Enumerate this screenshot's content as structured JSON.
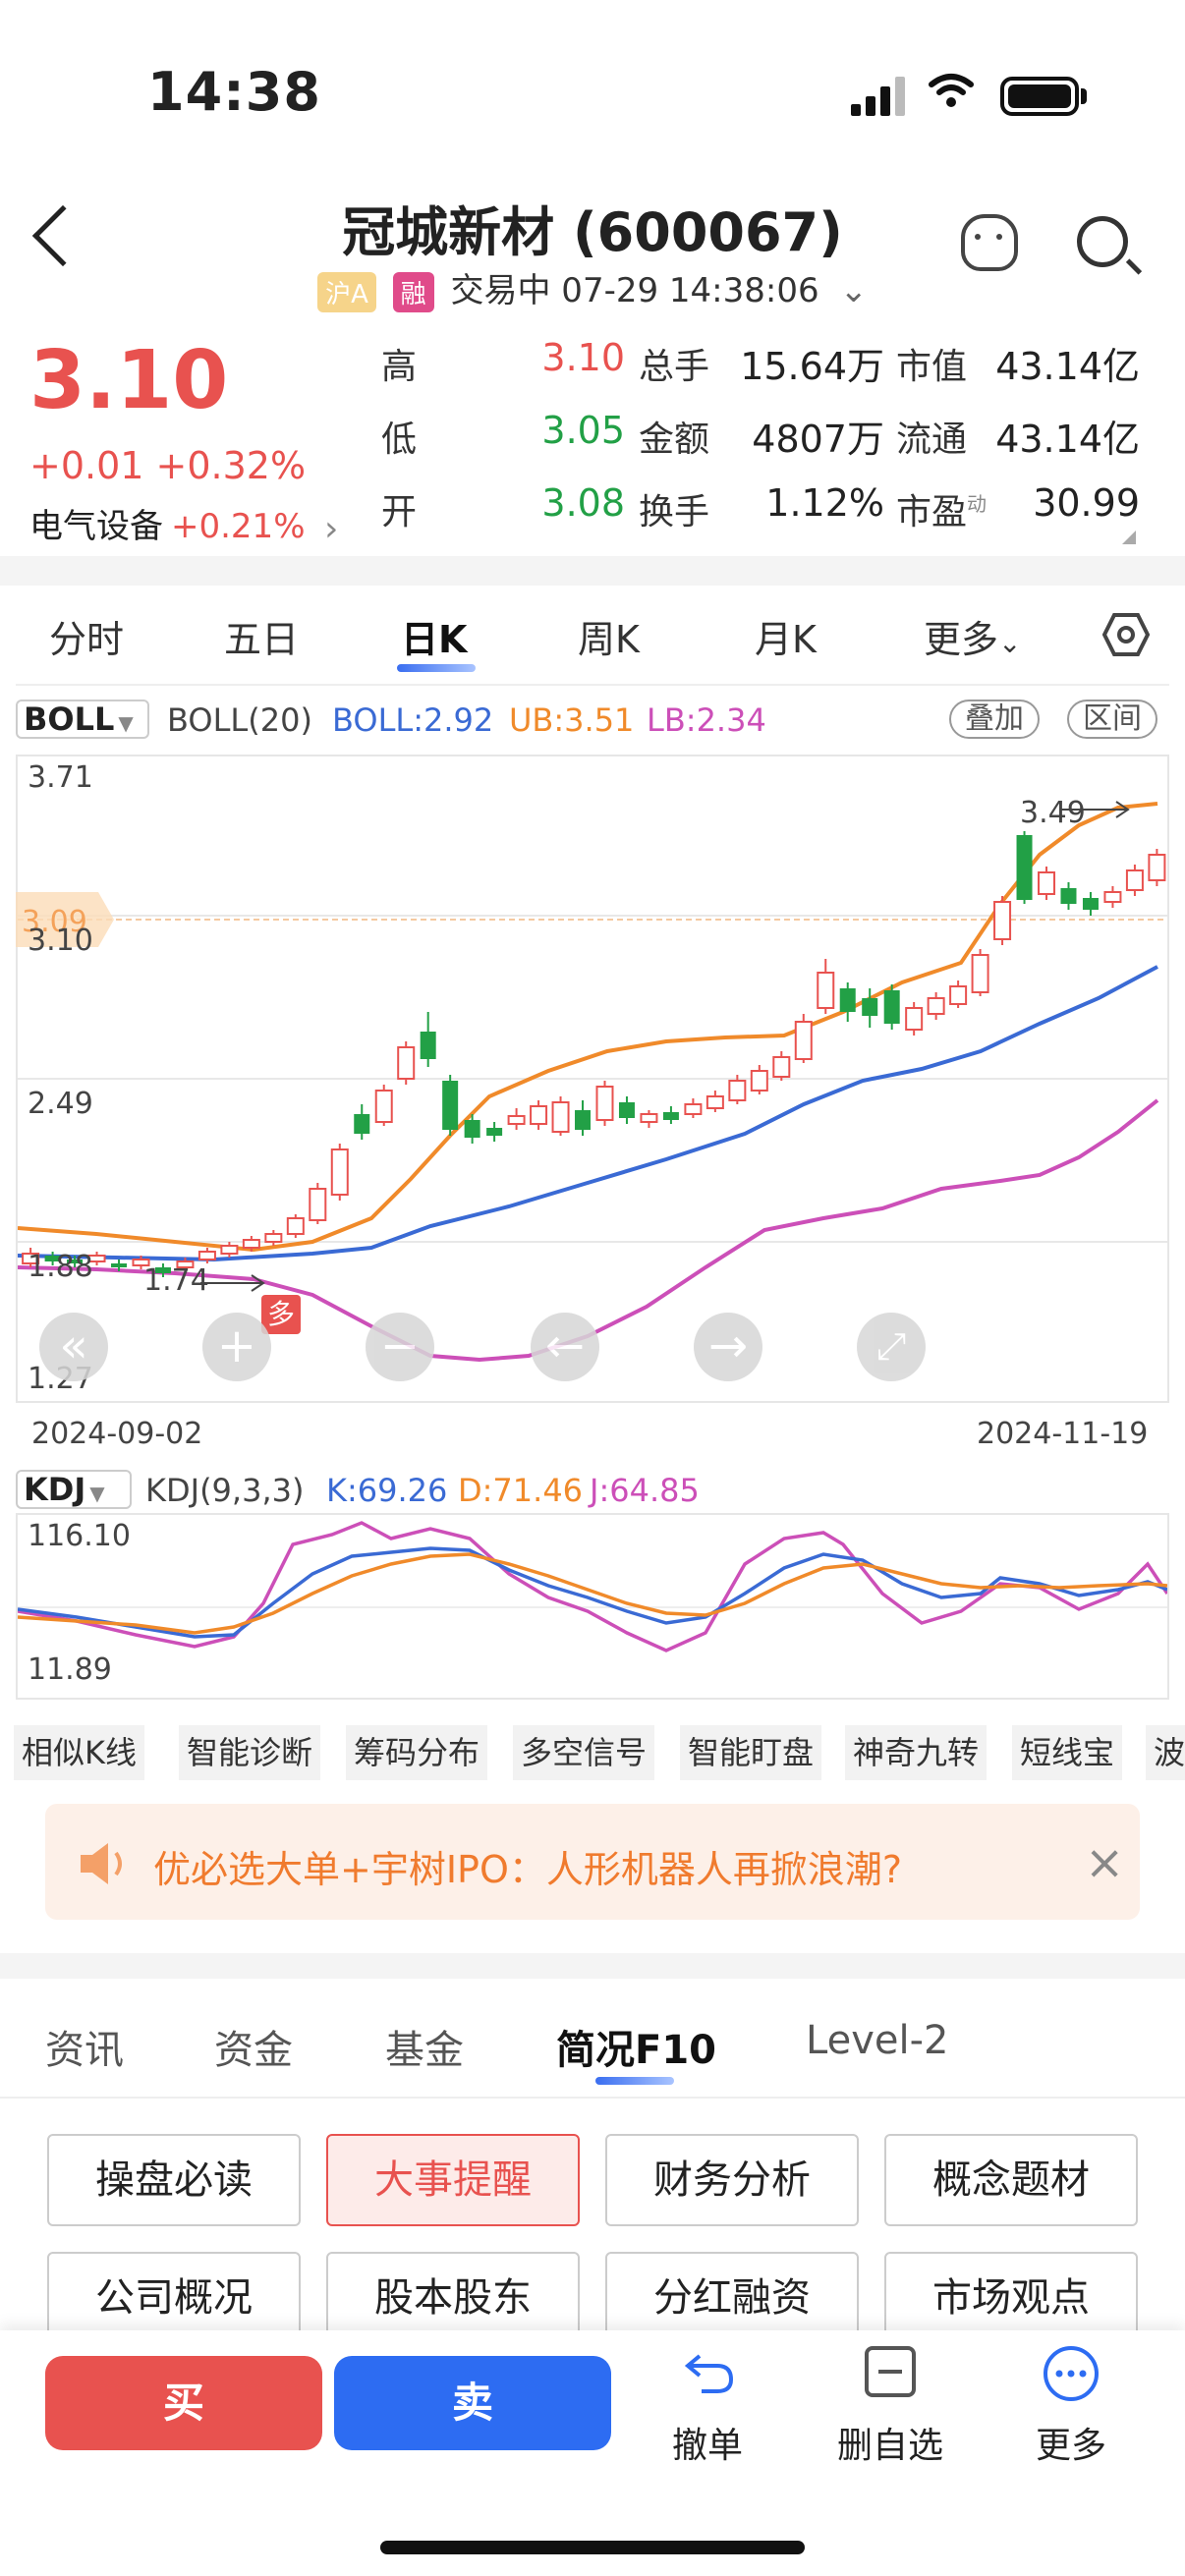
{
  "status_bar": {
    "time": "14:38"
  },
  "header": {
    "title": "冠城新材 (600067)",
    "tag_market": "沪A",
    "tag_margin": "融",
    "trade_status": "交易中 07-29 14:38:06"
  },
  "quote": {
    "price": "3.10",
    "change": "+0.01 +0.32%",
    "sector": "电气设备",
    "sector_change": "+0.21%",
    "rows": [
      {
        "l1": "高",
        "v1": "3.10",
        "l2": "总手",
        "v2": "15.64万",
        "l3": "市值",
        "v3": "43.14亿"
      },
      {
        "l1": "低",
        "v1": "3.05",
        "l2": "金额",
        "v2": "4807万",
        "l3": "流通",
        "v3": "43.14亿"
      },
      {
        "l1": "开",
        "v1": "3.08",
        "l2": "换手",
        "v2": "1.12%",
        "l3": "市盈",
        "l3_sup": "动",
        "v3": "30.99"
      }
    ]
  },
  "kline_tabs": [
    "分时",
    "五日",
    "日K",
    "周K",
    "月K",
    "更多"
  ],
  "boll": {
    "name": "BOLL",
    "params": "BOLL(20)",
    "mid": "BOLL:2.92",
    "ub": "UB:3.51",
    "lb": "LB:2.34",
    "btn_overlay": "叠加",
    "btn_range": "区间"
  },
  "chart": {
    "y_labels": [
      "3.71",
      "3.10",
      "2.49",
      "1.88",
      "1.27"
    ],
    "current_price_tag": "3.09",
    "high_mark": "3.49",
    "low_mark": "1.74",
    "signal": "多",
    "date_start": "2024-09-02",
    "date_end": "2024-11-19"
  },
  "kdj": {
    "name": "KDJ",
    "params": "KDJ(9,3,3)",
    "k": "K:69.26",
    "d": "D:71.46",
    "j": "J:64.85",
    "y_top": "116.10",
    "y_bottom": "11.89"
  },
  "tools": [
    "相似K线",
    "智能诊断",
    "筹码分布",
    "多空信号",
    "智能盯盘",
    "神奇九转",
    "短线宝",
    "波"
  ],
  "banner": {
    "text": "优必选大单+宇树IPO：人形机器人再掀浪潮?"
  },
  "f10_tabs": [
    "资讯",
    "资金",
    "基金",
    "简况F10",
    "Level-2"
  ],
  "f10_buttons": [
    "操盘必读",
    "大事提醒",
    "财务分析",
    "概念题材",
    "公司概况",
    "股本股东",
    "分红融资",
    "市场观点"
  ],
  "bottom": {
    "buy": "买",
    "sell": "卖",
    "cancel": "撤单",
    "remove_watch": "删自选",
    "more": "更多"
  },
  "colors": {
    "up": "#e8524f",
    "down": "#22a046",
    "accent": "#2d6cf2",
    "boll_mid": "#3a6ad4",
    "boll_ub": "#f08a2a",
    "boll_lb": "#cc4fb8"
  }
}
